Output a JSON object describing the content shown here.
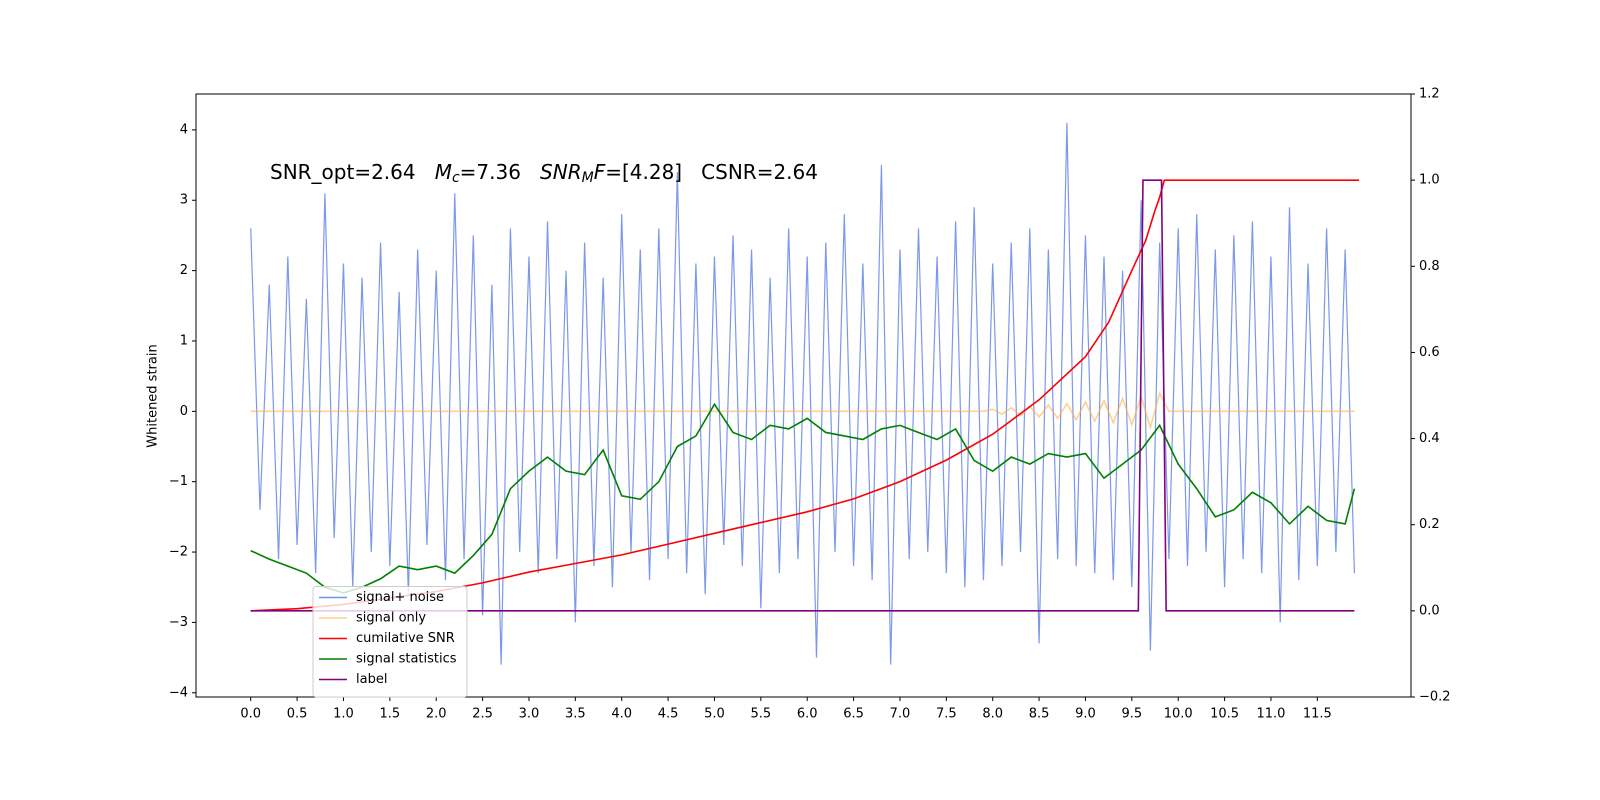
{
  "chart_data": {
    "type": "line",
    "ylabel": "Whitened strain",
    "annotation": [
      {
        "text": "SNR_opt=2.64   ",
        "style": "normal"
      },
      {
        "text": "M",
        "style": "italic"
      },
      {
        "text": "c",
        "style": "sub"
      },
      {
        "text": "=7.36   ",
        "style": "normal"
      },
      {
        "text": "SNR",
        "style": "italic"
      },
      {
        "text": "M",
        "style": "sub"
      },
      {
        "text": "F",
        "style": "italic"
      },
      {
        "text": "=[4.28]   CSNR=2.64",
        "style": "normal"
      }
    ],
    "xlim": [
      -0.59,
      12.51
    ],
    "ylim": [
      -4.06,
      4.51
    ],
    "y2lim": [
      -0.2,
      1.2
    ],
    "xticks": [
      {
        "value": 0,
        "label": "0.0"
      },
      0.5,
      {
        "value": 1,
        "label": "1.0"
      },
      1.5,
      {
        "value": 2,
        "label": "2.0"
      },
      2.5,
      {
        "value": 3,
        "label": "3.0"
      },
      3.5,
      {
        "value": 4,
        "label": "4.0"
      },
      4.5,
      {
        "value": 5,
        "label": "5.0"
      },
      5.5,
      {
        "value": 6,
        "label": "6.0"
      },
      6.5,
      {
        "value": 7,
        "label": "7.0"
      },
      7.5,
      {
        "value": 8,
        "label": "8.0"
      },
      8.5,
      {
        "value": 9,
        "label": "9.0"
      },
      9.5,
      {
        "value": 10,
        "label": "10.0"
      },
      10.5,
      {
        "value": 11,
        "label": "11.0"
      },
      11.5
    ],
    "yticks": [
      {
        "value": -4,
        "label": "−4"
      },
      {
        "value": -3,
        "label": "−3"
      },
      {
        "value": -2,
        "label": "−2"
      },
      {
        "value": -1,
        "label": "−1"
      },
      0,
      1,
      2,
      3,
      4
    ],
    "y2ticks": [
      {
        "value": -0.2,
        "label": "−0.2"
      },
      {
        "value": 0,
        "label": "0.0"
      },
      0.2,
      0.4,
      0.6,
      0.8,
      {
        "value": 1,
        "label": "1.0"
      },
      1.2
    ],
    "legend": "lower left",
    "x": [
      0.0,
      0.1,
      0.2,
      0.3,
      0.4,
      0.5,
      0.6,
      0.7,
      0.8,
      0.9,
      1.0,
      1.1,
      1.2,
      1.3,
      1.4,
      1.5,
      1.6,
      1.7,
      1.8,
      1.9,
      2.0,
      2.1,
      2.2,
      2.3,
      2.4,
      2.5,
      2.6,
      2.7,
      2.8,
      2.9,
      3.0,
      3.1,
      3.2,
      3.3,
      3.4,
      3.5,
      3.6,
      3.7,
      3.8,
      3.9,
      4.0,
      4.1,
      4.2,
      4.3,
      4.4,
      4.5,
      4.6,
      4.7,
      4.8,
      4.9,
      5.0,
      5.1,
      5.2,
      5.3,
      5.4,
      5.5,
      5.6,
      5.7,
      5.8,
      5.9,
      6.0,
      6.1,
      6.2,
      6.3,
      6.4,
      6.5,
      6.6,
      6.7,
      6.8,
      6.9,
      7.0,
      7.1,
      7.2,
      7.3,
      7.4,
      7.5,
      7.6,
      7.7,
      7.8,
      7.9,
      8.0,
      8.1,
      8.2,
      8.3,
      8.4,
      8.5,
      8.6,
      8.7,
      8.8,
      8.9,
      9.0,
      9.1,
      9.2,
      9.3,
      9.4,
      9.5,
      9.6,
      9.7,
      9.8,
      9.9,
      10.0,
      10.1,
      10.2,
      10.3,
      10.4,
      10.5,
      10.6,
      10.7,
      10.8,
      10.9,
      11.0,
      11.1,
      11.2,
      11.3,
      11.4,
      11.5,
      11.6,
      11.7,
      11.8,
      11.9
    ],
    "series": [
      {
        "name": "signal+ noise",
        "color": "#7592e8",
        "values": [
          2.6,
          -1.4,
          1.8,
          -2.1,
          2.2,
          -1.9,
          1.6,
          -2.3,
          3.1,
          -1.8,
          2.1,
          -2.5,
          1.9,
          -2.0,
          2.4,
          -2.2,
          1.7,
          -2.6,
          2.3,
          -1.9,
          2.0,
          -2.4,
          3.1,
          -2.1,
          2.5,
          -2.9,
          1.8,
          -3.6,
          2.6,
          -2.0,
          2.2,
          -2.3,
          2.7,
          -2.1,
          2.0,
          -3.0,
          2.4,
          -2.2,
          1.9,
          -2.5,
          2.8,
          -2.0,
          2.3,
          -2.4,
          2.6,
          -2.1,
          3.4,
          -2.3,
          2.1,
          -2.6,
          2.2,
          -1.9,
          2.5,
          -2.2,
          2.3,
          -2.8,
          1.9,
          -2.3,
          2.6,
          -2.1,
          2.2,
          -3.5,
          2.4,
          -2.0,
          2.8,
          -2.2,
          2.1,
          -2.4,
          3.5,
          -3.6,
          2.3,
          -2.1,
          2.6,
          -2.0,
          2.2,
          -2.3,
          2.7,
          -2.5,
          2.9,
          -2.4,
          2.1,
          -2.2,
          2.4,
          -2.0,
          2.6,
          -3.3,
          2.3,
          -2.1,
          4.1,
          -2.2,
          2.5,
          -2.3,
          2.2,
          -2.4,
          2.0,
          -2.5,
          3.0,
          -3.4,
          2.4,
          -2.1,
          2.6,
          -2.2,
          2.8,
          -2.0,
          2.3,
          -2.5,
          2.5,
          -2.1,
          2.7,
          -2.3,
          2.2,
          -3.0,
          2.9,
          -2.4,
          2.1,
          -2.2,
          2.6,
          -2.0,
          2.3,
          -2.3
        ]
      },
      {
        "name": "signal only",
        "color": "#ffb347",
        "values": [
          0,
          0,
          0,
          0,
          0,
          0,
          0,
          0,
          0,
          0,
          0,
          0,
          0,
          0,
          0,
          0,
          0,
          0,
          0,
          0,
          0,
          0,
          0,
          0,
          0,
          0,
          0,
          0,
          0,
          0,
          0,
          0,
          0,
          0,
          0,
          0,
          0,
          0,
          0,
          0,
          0,
          0,
          0,
          0,
          0,
          0,
          0,
          0,
          0,
          0,
          0,
          0,
          0,
          0,
          0,
          0,
          0,
          0,
          0,
          0,
          0,
          0,
          0,
          0,
          0,
          0,
          0,
          0,
          0,
          0,
          0,
          0,
          0,
          0,
          0,
          0,
          0,
          0,
          0,
          0,
          0.03,
          -0.04,
          0.05,
          -0.06,
          0.07,
          -0.08,
          0.09,
          -0.1,
          0.11,
          -0.12,
          0.13,
          -0.14,
          0.15,
          -0.16,
          0.18,
          -0.19,
          0.21,
          -0.23,
          0.26,
          0,
          0,
          0,
          0,
          0,
          0,
          0,
          0,
          0,
          0,
          0,
          0,
          0,
          0,
          0,
          0,
          0,
          0,
          0,
          0,
          0
        ]
      },
      {
        "name": "cumilative SNR",
        "color": "#ff0000",
        "axis": "y2",
        "x": [
          0,
          0.5,
          1,
          1.5,
          2,
          2.5,
          3,
          3.5,
          4,
          4.5,
          5,
          5.5,
          6,
          6.5,
          7,
          7.5,
          8,
          8.5,
          9,
          9.25,
          9.5,
          9.65,
          9.75,
          9.8,
          9.85,
          11.95
        ],
        "values": [
          0,
          0.005,
          0.015,
          0.03,
          0.045,
          0.065,
          0.09,
          0.11,
          0.13,
          0.155,
          0.18,
          0.205,
          0.23,
          0.26,
          0.3,
          0.35,
          0.41,
          0.49,
          0.59,
          0.67,
          0.79,
          0.86,
          0.93,
          0.96,
          1.0,
          1.0
        ]
      },
      {
        "name": "signal statistics",
        "color": "#008000",
        "x": [
          0.0,
          0.2,
          0.4,
          0.6,
          0.8,
          1.0,
          1.2,
          1.4,
          1.6,
          1.8,
          2.0,
          2.2,
          2.4,
          2.6,
          2.8,
          3.0,
          3.2,
          3.4,
          3.6,
          3.8,
          4.0,
          4.2,
          4.4,
          4.6,
          4.8,
          5.0,
          5.2,
          5.4,
          5.6,
          5.8,
          6.0,
          6.2,
          6.4,
          6.6,
          6.8,
          7.0,
          7.2,
          7.4,
          7.6,
          7.8,
          8.0,
          8.2,
          8.4,
          8.6,
          8.8,
          9.0,
          9.2,
          9.4,
          9.6,
          9.8,
          10.0,
          10.2,
          10.4,
          10.6,
          10.8,
          11.0,
          11.2,
          11.4,
          11.6,
          11.8,
          11.9
        ],
        "values": [
          -1.98,
          -2.1,
          -2.2,
          -2.3,
          -2.5,
          -2.58,
          -2.5,
          -2.38,
          -2.2,
          -2.25,
          -2.2,
          -2.3,
          -2.05,
          -1.75,
          -1.1,
          -0.85,
          -0.65,
          -0.85,
          -0.9,
          -0.55,
          -1.2,
          -1.25,
          -1.0,
          -0.5,
          -0.35,
          0.1,
          -0.3,
          -0.4,
          -0.2,
          -0.25,
          -0.1,
          -0.3,
          -0.35,
          -0.4,
          -0.25,
          -0.2,
          -0.3,
          -0.4,
          -0.25,
          -0.7,
          -0.85,
          -0.65,
          -0.75,
          -0.6,
          -0.65,
          -0.6,
          -0.95,
          -0.75,
          -0.55,
          -0.2,
          -0.75,
          -1.1,
          -1.5,
          -1.4,
          -1.15,
          -1.3,
          -1.6,
          -1.35,
          -1.55,
          -1.6,
          -1.1
        ]
      },
      {
        "name": "label",
        "color": "#800080",
        "axis": "y2",
        "x": [
          0,
          9.57,
          9.62,
          9.82,
          9.87,
          11.9
        ],
        "values": [
          0,
          0,
          1,
          1,
          0,
          0
        ]
      }
    ]
  }
}
